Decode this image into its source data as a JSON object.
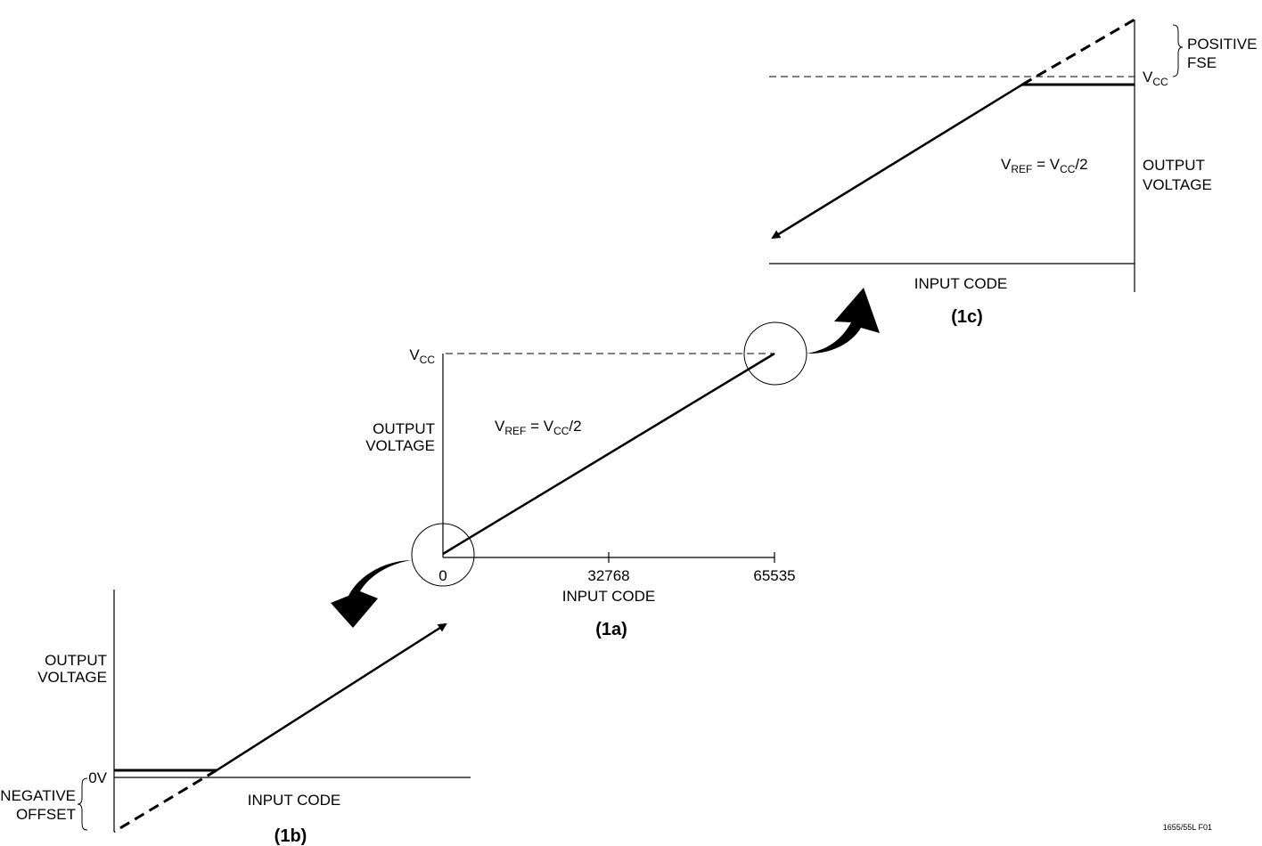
{
  "panel_1a": {
    "caption": "(1a)",
    "y_axis_label_line1": "OUTPUT",
    "y_axis_label_line2": "VOLTAGE",
    "x_axis_label": "INPUT CODE",
    "tick_0": "0",
    "tick_mid": "32768",
    "tick_max": "65535",
    "vcc_label_main": "V",
    "vcc_label_sub": "CC",
    "vref_v": "V",
    "vref_sub": "REF",
    "vref_eq": " = V",
    "vref_sub2": "CC",
    "vref_tail": "/2"
  },
  "panel_1b": {
    "caption": "(1b)",
    "y_axis_label_line1": "OUTPUT",
    "y_axis_label_line2": "VOLTAGE",
    "x_axis_label": "INPUT CODE",
    "zero_label": "0V",
    "offset_label_line1": "NEGATIVE",
    "offset_label_line2": "OFFSET"
  },
  "panel_1c": {
    "caption": "(1c)",
    "y_axis_label_line1": "OUTPUT",
    "y_axis_label_line2": "VOLTAGE",
    "x_axis_label": "INPUT CODE",
    "vcc_label_main": "V",
    "vcc_label_sub": "CC",
    "fse_label_line1": "POSITIVE",
    "fse_label_line2": "FSE",
    "vref_v": "V",
    "vref_sub": "REF",
    "vref_eq": " = V",
    "vref_sub2": "CC",
    "vref_tail": "/2"
  },
  "figure_id": "1655/55L F01"
}
